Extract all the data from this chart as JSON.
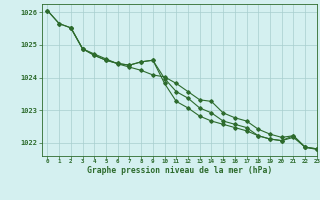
{
  "title": "Graphe pression niveau de la mer (hPa)",
  "bg_color": "#d4f0f0",
  "grid_color": "#a8cece",
  "line_color": "#2d6b2d",
  "xlim": [
    -0.5,
    23
  ],
  "ylim": [
    1021.6,
    1026.25
  ],
  "xticks": [
    0,
    1,
    2,
    3,
    4,
    5,
    6,
    7,
    8,
    9,
    10,
    11,
    12,
    13,
    14,
    15,
    16,
    17,
    18,
    19,
    20,
    21,
    22,
    23
  ],
  "yticks": [
    1022,
    1023,
    1024,
    1025,
    1026
  ],
  "series1_x": [
    0,
    1,
    2,
    3,
    4,
    5,
    6,
    7,
    8,
    9,
    10,
    11,
    12,
    13,
    14,
    15,
    16,
    17,
    18,
    19,
    20,
    21,
    22,
    23
  ],
  "series1_y": [
    1026.05,
    1025.65,
    1025.52,
    1024.88,
    1024.72,
    1024.57,
    1024.42,
    1024.32,
    1024.22,
    1024.08,
    1024.02,
    1023.82,
    1023.57,
    1023.32,
    1023.27,
    1022.92,
    1022.77,
    1022.67,
    1022.42,
    1022.27,
    1022.17,
    1022.22,
    1021.87,
    1021.82
  ],
  "series2_x": [
    0,
    1,
    2,
    3,
    4,
    5,
    6,
    7,
    8,
    9,
    10,
    11,
    12,
    13,
    14,
    15,
    16,
    17,
    18,
    19,
    20,
    21,
    22,
    23
  ],
  "series2_y": [
    1026.05,
    1025.65,
    1025.52,
    1024.88,
    1024.68,
    1024.53,
    1024.43,
    1024.38,
    1024.48,
    1024.53,
    1023.97,
    1023.57,
    1023.37,
    1023.07,
    1022.92,
    1022.67,
    1022.57,
    1022.47,
    1022.22,
    1022.12,
    1022.07,
    1022.22,
    1021.87,
    1021.82
  ],
  "series3_x": [
    2,
    3,
    4,
    5,
    6,
    7,
    8,
    9,
    10,
    11,
    12,
    13,
    14,
    15,
    16,
    17,
    18,
    19,
    20,
    21,
    22,
    23
  ],
  "series3_y": [
    1025.52,
    1024.88,
    1024.68,
    1024.53,
    1024.43,
    1024.38,
    1024.48,
    1024.53,
    1023.82,
    1023.27,
    1023.07,
    1022.82,
    1022.67,
    1022.57,
    1022.47,
    1022.37,
    1022.22,
    1022.12,
    1022.07,
    1022.17,
    1021.87,
    1021.8
  ]
}
